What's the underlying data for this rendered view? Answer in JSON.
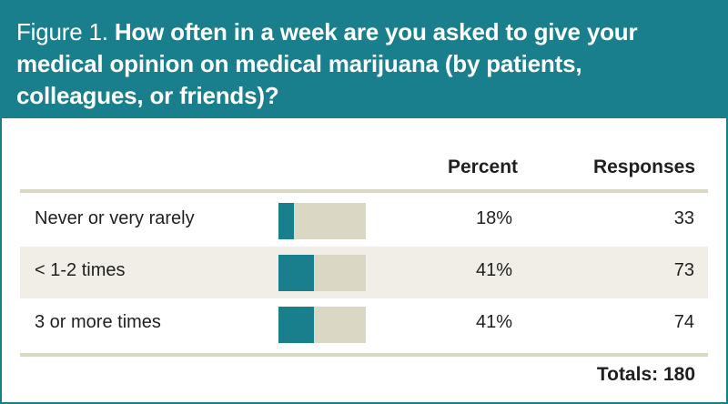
{
  "header": {
    "figure_label": "Figure 1.",
    "question": "How often in a week are you asked to give your medical opinion on medical marijuana (by patients, colleagues, or friends)?"
  },
  "columns": {
    "percent": "Percent",
    "responses": "Responses"
  },
  "colors": {
    "accent": "#1a7f8c",
    "bar_track": "#dad7c4",
    "row_alt": "#f0eee6"
  },
  "chart_data": {
    "type": "table",
    "title": "How often in a week are you asked to give your medical opinion on medical marijuana (by patients, colleagues, or friends)?",
    "categories": [
      "Never or very rarely",
      "< 1-2 times",
      "3 or more times"
    ],
    "percent_values": [
      18,
      41,
      41
    ],
    "percent_labels": [
      "18%",
      "41%",
      "41%"
    ],
    "responses": [
      33,
      73,
      74
    ],
    "bar_max": 100
  },
  "totals_label": "Totals: 180"
}
